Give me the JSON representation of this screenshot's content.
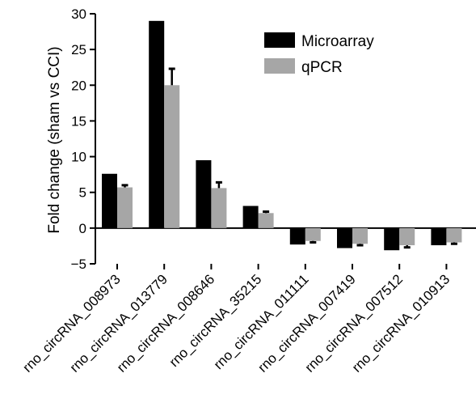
{
  "chart_data": {
    "type": "bar",
    "title": "",
    "xlabel": "",
    "ylabel": "Fold change (sham vs CCI)",
    "ylim": [
      -5,
      30
    ],
    "yticks": [
      -5,
      0,
      5,
      10,
      15,
      20,
      25,
      30
    ],
    "grid": false,
    "legend_position": "top-right",
    "categories": [
      "rno_circRNA_008973",
      "rno_circRNA_013779",
      "rno_circRNA_008646",
      "rno_circRNA_35215",
      "rno_circRNA_011111",
      "rno_circRNA_007419",
      "rno_circRNA_007512",
      "rno_circRNA_010913"
    ],
    "series": [
      {
        "name": "Microarray",
        "color": "#000000",
        "values": [
          7.6,
          29.0,
          9.5,
          3.1,
          -2.3,
          -2.8,
          -3.1,
          -2.4
        ]
      },
      {
        "name": "qPCR",
        "color": "#a6a6a6",
        "values": [
          5.7,
          20.0,
          5.6,
          2.1,
          -1.8,
          -2.2,
          -2.4,
          -2.0
        ],
        "errors": [
          0.3,
          2.3,
          0.8,
          0.2,
          0.2,
          0.2,
          0.3,
          0.2
        ]
      }
    ]
  }
}
